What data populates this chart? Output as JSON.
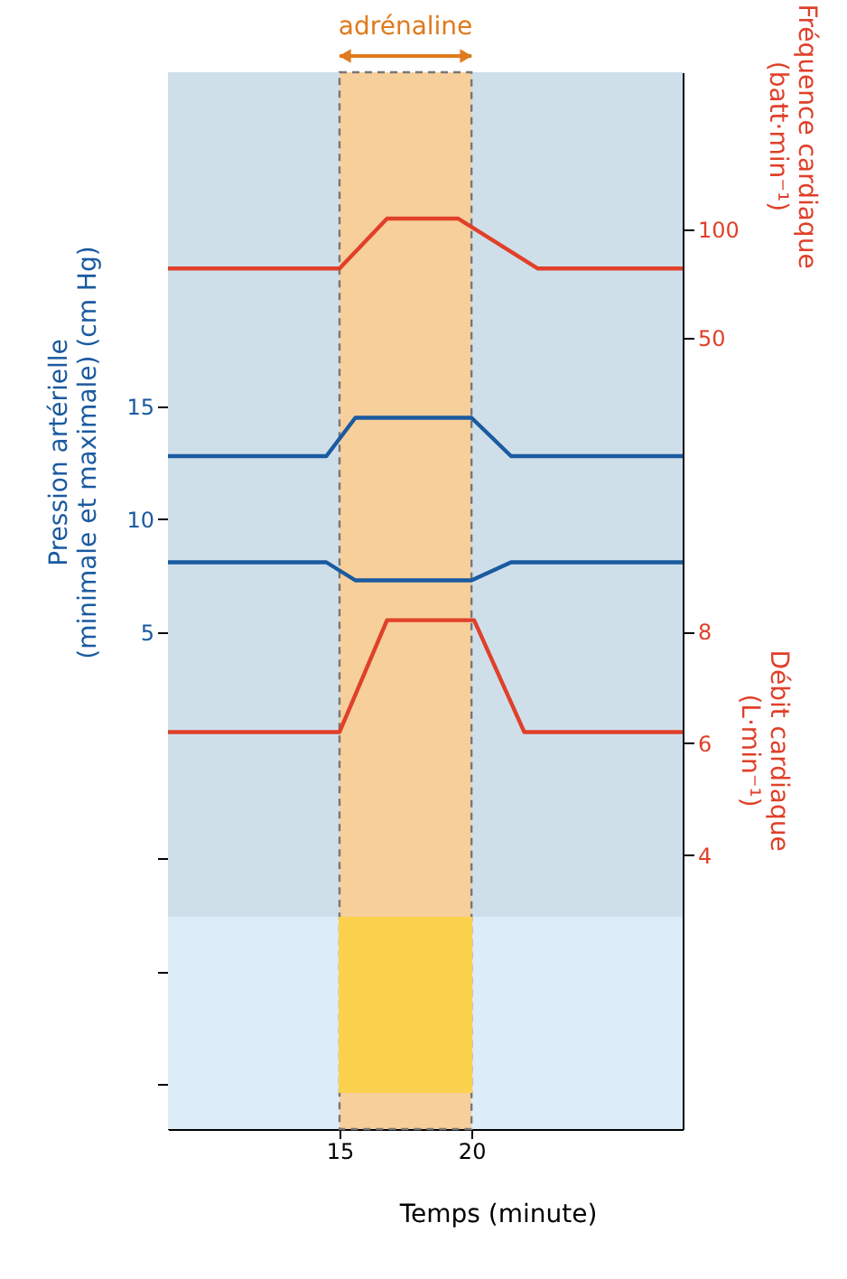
{
  "chart_data": {
    "type": "line",
    "xlabel": "Temps (minute)",
    "ylabel": "Pression artérielle\n(minimale et maximale) (cm Hg)",
    "y2label": "Fréquence cardiaque\n(batt·min⁻¹)",
    "y3label": "Débit cardiaque\n(L·min⁻¹)",
    "xlim": [
      8.5,
      28
    ],
    "xticks": [
      15,
      20
    ],
    "ylim": [
      -17,
      29.8
    ],
    "yticks": [
      {
        "value": -15,
        "label": null
      },
      {
        "value": -10,
        "label": null
      },
      {
        "value": -5,
        "label": null
      },
      5,
      10,
      15
    ],
    "y2lim": [
      -315,
      172.5
    ],
    "y2ticks": [
      50,
      100
    ],
    "y3lim": [
      -0.9,
      18
    ],
    "y3ticks": [
      4,
      6,
      8
    ],
    "marker": "none",
    "line_style": "solid",
    "bands": [
      {
        "axis": "y",
        "from": -7.6,
        "to": 29.8,
        "color": "#cfdfea"
      },
      {
        "axis": "y",
        "from": -17,
        "to": -7.6,
        "color": "#dcecf9"
      },
      {
        "axis": "x",
        "from": 15,
        "to": 20,
        "label": "adrénaline",
        "color": "#f7cf9a"
      }
    ],
    "series": [
      {
        "axis": "y2",
        "color": "#e0402a",
        "x": [
          8.5,
          15,
          16.8,
          19.5,
          22.5,
          28
        ],
        "values": [
          82,
          82,
          105,
          105,
          82,
          82
        ]
      },
      {
        "axis": "y",
        "color": "#1a5aa0",
        "x": [
          8.5,
          14.5,
          15.6,
          20,
          21.5,
          28
        ],
        "values": [
          12.8,
          12.8,
          14.5,
          14.5,
          12.8,
          12.8
        ]
      },
      {
        "axis": "y",
        "color": "#1a5aa0",
        "x": [
          8.5,
          14.5,
          15.6,
          20,
          21.5,
          28
        ],
        "values": [
          8.1,
          8.1,
          7.3,
          7.3,
          8.1,
          8.1
        ]
      },
      {
        "axis": "y3",
        "color": "#e0402a",
        "x": [
          8.5,
          15,
          16.8,
          20.1,
          22,
          28
        ],
        "values": [
          6.2,
          6.2,
          8.2,
          8.2,
          6.2,
          6.2
        ]
      },
      {
        "type": "bar",
        "axis": "y",
        "color": "#fcd14d",
        "x": [
          17.5
        ],
        "values": [
          7.8
        ],
        "base": [
          -15.4
        ]
      }
    ]
  }
}
